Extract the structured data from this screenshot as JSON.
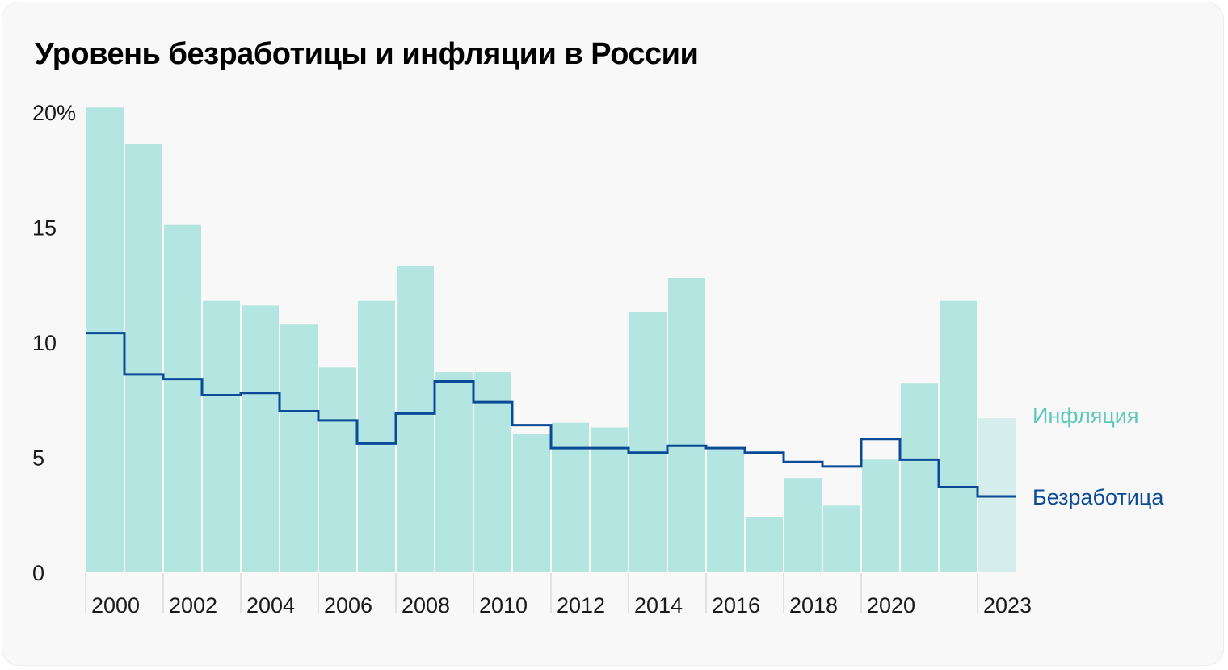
{
  "title": "Уровень безработицы и инфляции в России",
  "colors": {
    "inflation_bar": "#b3e5e1",
    "inflation_bar_estimate": "#d5eeeb",
    "inflation_label": "#5cc8b9",
    "unemployment_line": "#0b4a96",
    "card_bg": "#f8f8f8",
    "tick_line": "#e2e2e2"
  },
  "legend": {
    "inflation": "Инфляция",
    "unemployment": "Безработица"
  },
  "chart_data": {
    "type": "bar",
    "title": "Уровень безработицы и инфляции в России",
    "xlabel": "",
    "ylabel": "",
    "ylim": [
      0,
      20
    ],
    "y_ticks": [
      "20%",
      "15",
      "10",
      "5",
      "0"
    ],
    "x_tick_labels": [
      "2000",
      "2002",
      "2004",
      "2006",
      "2008",
      "2010",
      "2012",
      "2014",
      "2016",
      "2018",
      "2020",
      "2023"
    ],
    "grid": false,
    "legend_position": "right, inline labels",
    "categories": [
      "2000",
      "2001",
      "2002",
      "2003",
      "2004",
      "2005",
      "2006",
      "2007",
      "2008",
      "2009",
      "2010",
      "2011",
      "2012",
      "2013",
      "2014",
      "2015",
      "2016",
      "2017",
      "2018",
      "2019",
      "2020",
      "2021",
      "2022",
      "2023"
    ],
    "series": [
      {
        "name": "Инфляция",
        "type": "bar",
        "values": [
          20.2,
          18.6,
          15.1,
          11.8,
          11.6,
          10.8,
          8.9,
          11.8,
          13.3,
          8.7,
          8.7,
          6.0,
          6.5,
          6.3,
          11.3,
          12.8,
          5.3,
          2.4,
          4.1,
          2.9,
          4.9,
          8.2,
          11.8,
          6.7
        ],
        "note": "2023 bar rendered lighter"
      },
      {
        "name": "Безработица",
        "type": "step-line",
        "values": [
          10.4,
          8.6,
          8.4,
          7.7,
          7.8,
          7.0,
          6.6,
          5.6,
          6.9,
          8.3,
          7.4,
          6.4,
          5.4,
          5.4,
          5.2,
          5.5,
          5.4,
          5.2,
          4.8,
          4.6,
          5.8,
          4.9,
          3.7,
          3.3
        ]
      }
    ]
  }
}
